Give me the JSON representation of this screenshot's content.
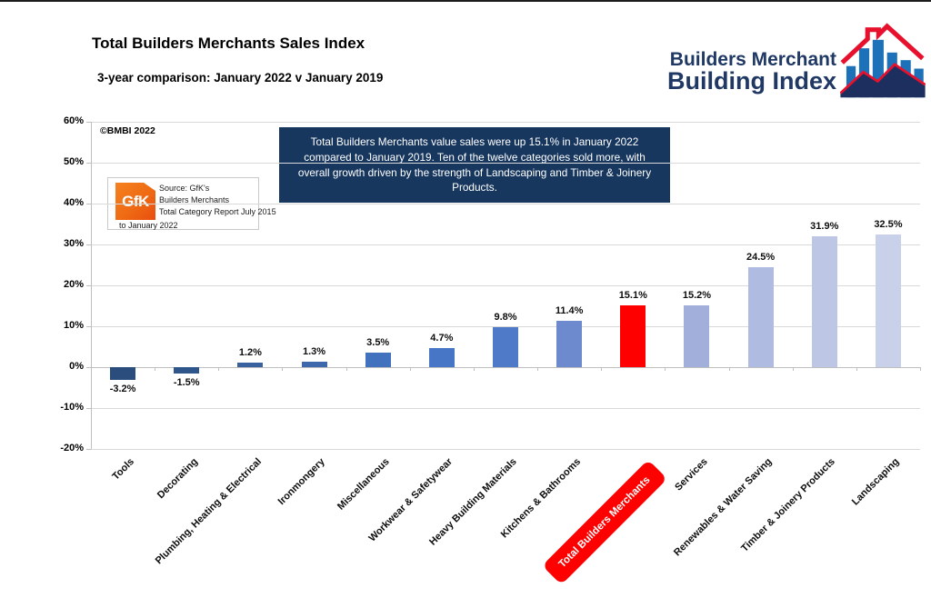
{
  "header": {
    "title": "Total Builders Merchants Sales Index",
    "subtitle": "3-year comparison: January 2022 v January 2019"
  },
  "logo": {
    "line1": "Builders Merchant",
    "line2": "Building Index",
    "navy": "#1F3864",
    "red": "#E8112D",
    "bar_blue": "#1D71B8"
  },
  "copyright": "©BMBI 2022",
  "source_box": {
    "logo_text": "GfK",
    "logo_color": "#EF6A13",
    "line1": "Source: GfK's",
    "line2": "Builders Merchants",
    "line3": "Total Category Report July 2015",
    "line4": "to January 2022"
  },
  "commentary": "Total Builders Merchants value sales were up 15.1% in January 2022 compared to January 2019. Ten of the twelve categories sold more, with overall growth driven by the strength of Landscaping and Timber & Joinery Products.",
  "chart_data": {
    "type": "bar",
    "title": "Total Builders Merchants Sales Index",
    "xlabel": "",
    "ylabel": "",
    "categories": [
      "Tools",
      "Decorating",
      "Plumbing, Heating & Electrical",
      "Ironmongery",
      "Miscellaneous",
      "Workwear & Safetywear",
      "Heavy Building Materials",
      "Kitchens & Bathrooms",
      "Total Builders Merchants",
      "Services",
      "Renewables & Water Saving",
      "Timber & Joinery Products",
      "Landscaping"
    ],
    "values": [
      -3.2,
      -1.5,
      1.2,
      1.3,
      3.5,
      4.7,
      9.8,
      11.4,
      15.1,
      15.2,
      24.5,
      31.9,
      32.5
    ],
    "bar_colors": [
      "#2B4D7E",
      "#2F568B",
      "#38619E",
      "#3D69AC",
      "#4272BD",
      "#4676C5",
      "#4E7AC7",
      "#6E8ACE",
      "#FF0000",
      "#A2AFDA",
      "#AFBBE0",
      "#BDC7E5",
      "#C8D0EA"
    ],
    "highlight_index": 8,
    "highlight_color": "#FF0000",
    "ylim": [
      -20,
      60
    ],
    "ytick_step": 10,
    "ytick_labels": [
      "-20%",
      "-10%",
      "0%",
      "10%",
      "20%",
      "30%",
      "40%",
      "50%",
      "60%"
    ],
    "grid": true,
    "legend": "none",
    "gridline_color": "#D9D9D9"
  }
}
